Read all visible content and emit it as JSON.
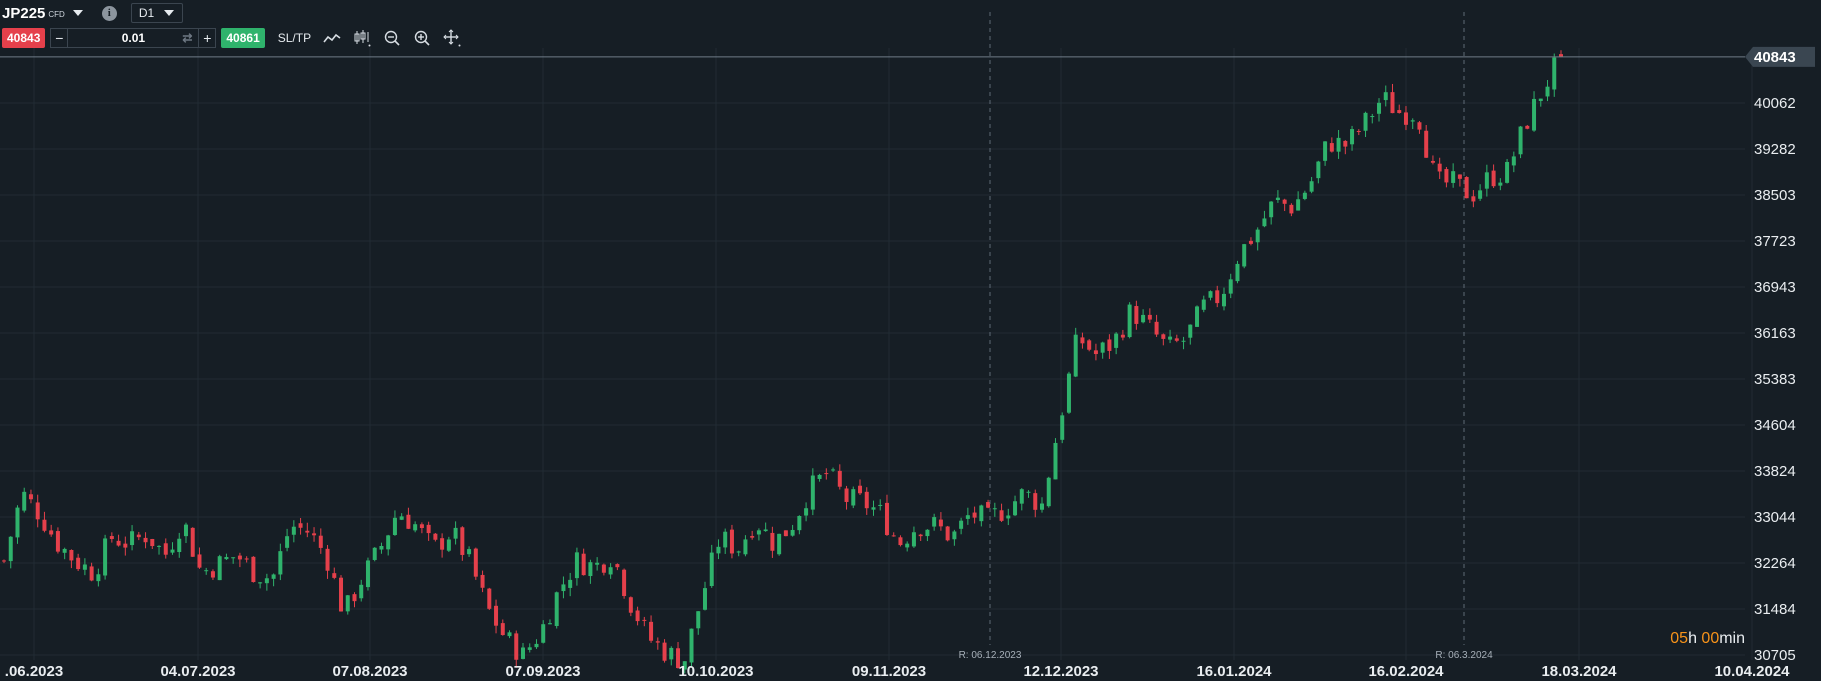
{
  "toolbar": {
    "symbol": "JP225",
    "symbol_type": "CFD",
    "info_glyph": "i",
    "timeframe": "D1",
    "sell_price": "40843",
    "buy_price": "40861",
    "lot_value": "0.01",
    "minus_glyph": "−",
    "plus_glyph": "+",
    "sltp_label": "SL/TP",
    "icons": [
      "line-chart-icon",
      "candlestick-icon",
      "zoom-out-icon",
      "zoom-in-icon",
      "crosshair-icon"
    ]
  },
  "chart_data": {
    "type": "candlestick",
    "instrument": "JP225",
    "timeframe": "D1",
    "current_price": 40843,
    "current_price_label": "40843",
    "y_ticks": [
      40062,
      39282,
      38503,
      37723,
      36943,
      36163,
      35383,
      34604,
      33824,
      33044,
      32264,
      31484,
      30705
    ],
    "y_tick_labels": [
      "40062",
      "39282",
      "38503",
      "37723",
      "36943",
      "36163",
      "35383",
      "34604",
      "33824",
      "33044",
      "32264",
      "31484",
      "30705"
    ],
    "x_tick_labels": [
      ".06.2023",
      "04.07.2023",
      "07.08.2023",
      "07.09.2023",
      "10.10.2023",
      "09.11.2023",
      "12.12.2023",
      "16.01.2024",
      "16.02.2024",
      "18.03.2024",
      "10.04.2024"
    ],
    "annotations": [
      "R: 06.12.2023",
      "R: 06.3.2024"
    ],
    "colors": {
      "up": "#2fb36c",
      "down": "#e5404b",
      "background": "#161e25",
      "grid": "#212b34"
    },
    "price_path": [
      32300,
      33450,
      33100,
      32600,
      32300,
      32100,
      32700,
      32600,
      32750,
      32400,
      33000,
      32100,
      32250,
      32400,
      32100,
      32000,
      32900,
      32800,
      32400,
      31400,
      32000,
      32500,
      33150,
      32900,
      32500,
      32800,
      32300,
      31500,
      31000,
      30700,
      31100,
      31800,
      32300,
      32200,
      32400,
      31600,
      31000,
      30750,
      30600,
      31700,
      32700,
      32500,
      33000,
      32600,
      32900,
      33500,
      33800,
      33350,
      33300,
      33100,
      32600,
      32900,
      32900,
      32700,
      33100,
      33000,
      33200,
      33450,
      33250,
      34700,
      36100,
      35800,
      36000,
      36550,
      36250,
      35900,
      36050,
      36600,
      36800,
      37500,
      37900,
      38400,
      38300,
      38700,
      39400,
      39350,
      39700,
      40150,
      39900,
      39900,
      38700,
      38700,
      38500,
      38800,
      38900,
      39700,
      40300,
      40843
    ],
    "timer": {
      "hours": "05",
      "hours_unit": "h",
      "minutes": "00",
      "minutes_unit": "min"
    }
  }
}
